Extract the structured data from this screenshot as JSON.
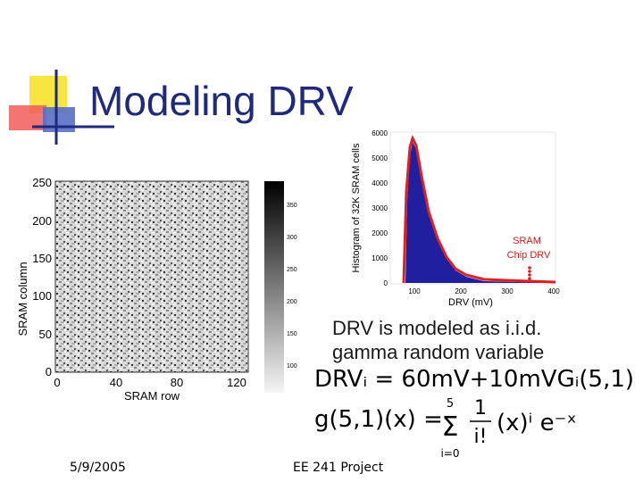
{
  "slide": {
    "title": "Modeling DRV",
    "description_line1": "DRV is modeled as i.i.d.",
    "description_line2": "gamma random variable",
    "equation1": "DRVᵢ = 60mV+10mVGᵢ(5,1)",
    "equation2_lhs": "g(5,1)(x) =",
    "equation2_sum_upper": "5",
    "equation2_sum_lower": "i=0",
    "equation2_numerator": "1",
    "equation2_denominator": "i!",
    "equation2_term": "(x)ⁱ e⁻ˣ",
    "footer_date": "5/9/2005",
    "footer_course": "EE 241 Project",
    "accent_color": "#1f2a7a"
  },
  "heatmap": {
    "ylabel": "SRAM column",
    "xlabel": "SRAM row",
    "yticks": [
      "250",
      "200",
      "150",
      "100",
      "50",
      "0"
    ],
    "xticks": [
      "0",
      "40",
      "80",
      "120"
    ],
    "colorbar_ticks": [
      "350",
      "300",
      "250",
      "200",
      "150",
      "100"
    ]
  },
  "histogram": {
    "ylabel": "Histogram of 32K SRAM cells",
    "xlabel": "DRV (mV)",
    "yticks": [
      "6000",
      "5000",
      "4000",
      "3000",
      "2000",
      "1000",
      "0"
    ],
    "xticks": [
      "100",
      "200",
      "300",
      "400"
    ],
    "annotation_line1": "SRAM",
    "annotation_line2": "Chip DRV"
  }
}
